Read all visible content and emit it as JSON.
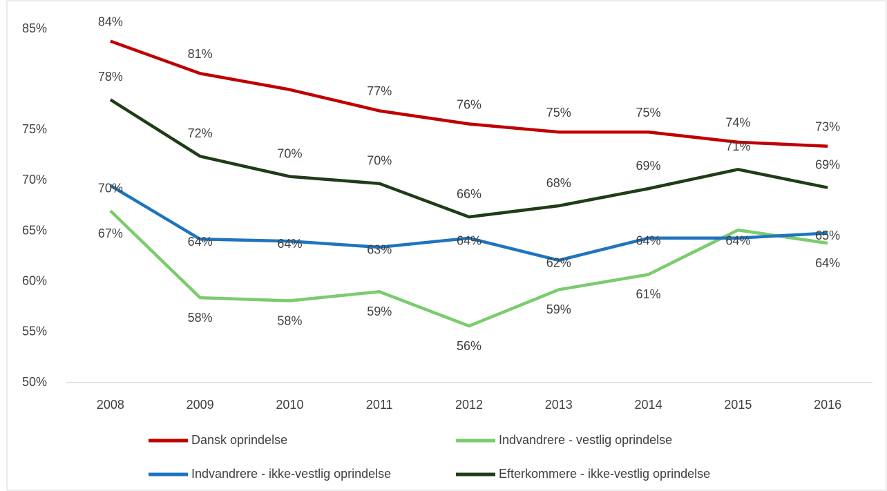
{
  "chart_data": {
    "type": "line",
    "categories": [
      "2008",
      "2009",
      "2010",
      "2011",
      "2012",
      "2013",
      "2014",
      "2015",
      "2016"
    ],
    "ylim": [
      50,
      85
    ],
    "yticks": [
      {
        "value": 50,
        "label": "50%"
      },
      {
        "value": 55,
        "label": "55%"
      },
      {
        "value": 60,
        "label": "60%"
      },
      {
        "value": 65,
        "label": "65%"
      },
      {
        "value": 70,
        "label": "70%"
      },
      {
        "value": 75,
        "label": "75%"
      },
      {
        "value": 85,
        "label": "85%"
      }
    ],
    "legend": "bottom",
    "series": [
      {
        "name": "Dansk oprindelse",
        "color": "#c00000",
        "values": [
          83.8,
          80.6,
          79.0,
          76.9,
          75.6,
          74.8,
          74.8,
          73.8,
          73.4
        ],
        "value_labels": [
          "84%",
          "81%",
          null,
          "77%",
          "76%",
          "75%",
          "75%",
          "74%",
          "73%"
        ]
      },
      {
        "name": "Indvandrere - vestlig oprindelse",
        "color": "#7acc6c",
        "values": [
          67.0,
          58.4,
          58.1,
          59.0,
          55.6,
          59.2,
          60.7,
          65.1,
          63.8
        ],
        "value_labels": [
          "67%",
          "58%",
          "58%",
          "59%",
          "56%",
          "59%",
          "61%",
          null,
          "64%"
        ]
      },
      {
        "name": "Indvandrere - ikke-vestlig oprindelse",
        "color": "#1f74bf",
        "values": [
          69.5,
          64.2,
          64.0,
          63.4,
          64.3,
          62.1,
          64.3,
          64.3,
          64.8
        ],
        "value_labels": [
          "70%",
          "64%",
          "64%",
          "63%",
          "64%",
          "62%",
          "64%",
          "64%",
          "65%"
        ]
      },
      {
        "name": "Efterkommere - ikke-vestlig oprindelse",
        "color": "#1e3d17",
        "values": [
          78.0,
          72.4,
          70.4,
          69.7,
          66.4,
          67.5,
          69.2,
          71.1,
          69.3
        ],
        "value_labels": [
          "78%",
          "72%",
          "70%",
          "70%",
          "66%",
          "68%",
          "69%",
          "71%",
          "69%"
        ]
      }
    ]
  }
}
